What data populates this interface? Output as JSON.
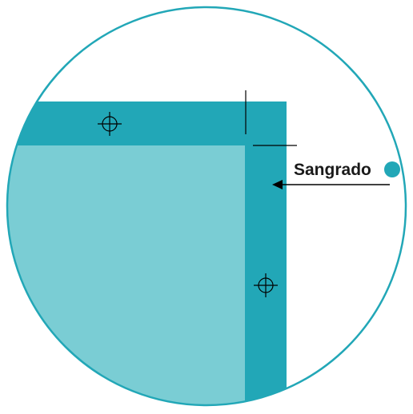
{
  "label": {
    "text": "Sangrado"
  },
  "colors": {
    "bleed": "#22a7b7",
    "page": "#7acdd4",
    "outline": "#22a7b7",
    "marks": "#000000",
    "label_text": "#1a1a1a",
    "background": "#ffffff"
  },
  "icons": {
    "registration_mark": "crosshair-circle",
    "label_dot": "filled-circle",
    "pointer": "left-arrow"
  }
}
